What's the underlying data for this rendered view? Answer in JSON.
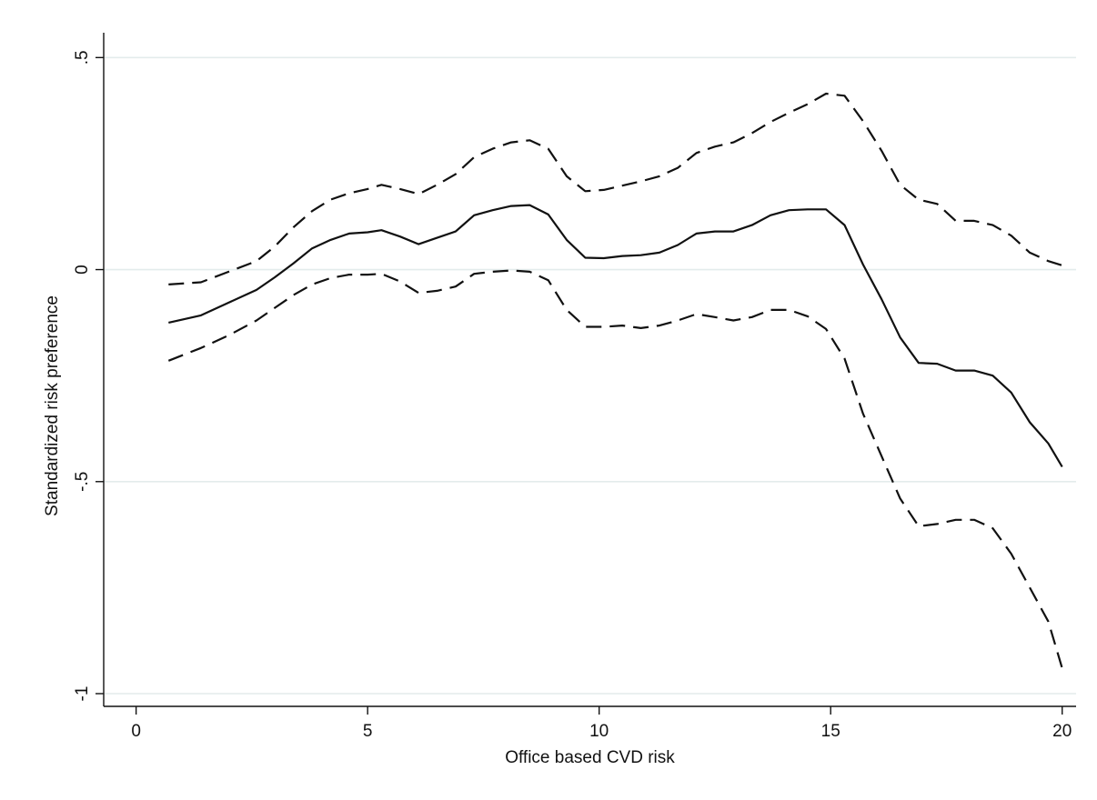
{
  "chart_data": {
    "type": "line",
    "title": "",
    "xlabel": "Office based CVD risk",
    "ylabel": "Standardized risk preference",
    "xlim": [
      -0.7,
      20.3
    ],
    "ylim": [
      -1.03,
      0.55
    ],
    "grid": true,
    "grid_color": "#e3ecec",
    "line_color": "#111111",
    "x_ticks": [
      {
        "value": 0,
        "label": "0"
      },
      {
        "value": 5,
        "label": "5"
      },
      {
        "value": 10,
        "label": "10"
      },
      {
        "value": 15,
        "label": "15"
      },
      {
        "value": 20,
        "label": "20"
      }
    ],
    "y_ticks": [
      {
        "value": 0.5,
        "label": ".5"
      },
      {
        "value": 0,
        "label": "0"
      },
      {
        "value": -0.5,
        "label": "-.5"
      },
      {
        "value": -1,
        "label": "-1"
      }
    ],
    "series": [
      {
        "style": "solid",
        "x": [
          0.7,
          1.4,
          2.0,
          2.6,
          3.0,
          3.4,
          3.8,
          4.2,
          4.6,
          5.0,
          5.3,
          5.7,
          6.1,
          6.5,
          6.9,
          7.3,
          7.7,
          8.1,
          8.5,
          8.9,
          9.3,
          9.7,
          10.1,
          10.5,
          10.9,
          11.3,
          11.7,
          12.1,
          12.5,
          12.9,
          13.3,
          13.7,
          14.1,
          14.5,
          14.9,
          15.3,
          15.7,
          16.1,
          16.5,
          16.9,
          17.3,
          17.7,
          18.1,
          18.5,
          18.9,
          19.3,
          19.7,
          20.0
        ],
        "y": [
          -0.125,
          -0.108,
          -0.078,
          -0.048,
          -0.018,
          0.015,
          0.05,
          0.07,
          0.085,
          0.088,
          0.093,
          0.078,
          0.06,
          0.075,
          0.09,
          0.128,
          0.14,
          0.15,
          0.152,
          0.13,
          0.07,
          0.028,
          0.027,
          0.032,
          0.034,
          0.04,
          0.058,
          0.085,
          0.09,
          0.09,
          0.105,
          0.128,
          0.14,
          0.142,
          0.142,
          0.105,
          0.012,
          -0.07,
          -0.16,
          -0.22,
          -0.222,
          -0.238,
          -0.238,
          -0.25,
          -0.29,
          -0.36,
          -0.41,
          -0.465
        ]
      },
      {
        "style": "dashed",
        "x": [
          0.7,
          1.4,
          2.0,
          2.6,
          3.0,
          3.4,
          3.8,
          4.2,
          4.6,
          5.0,
          5.3,
          5.7,
          6.1,
          6.5,
          6.9,
          7.3,
          7.7,
          8.1,
          8.5,
          8.9,
          9.3,
          9.7,
          10.1,
          10.5,
          10.9,
          11.3,
          11.7,
          12.1,
          12.5,
          12.9,
          13.3,
          13.7,
          14.1,
          14.5,
          14.9,
          15.3,
          15.7,
          16.1,
          16.5,
          16.9,
          17.3,
          17.7,
          18.1,
          18.5,
          18.9,
          19.3,
          19.7,
          20.0
        ],
        "y": [
          -0.035,
          -0.03,
          -0.005,
          0.02,
          0.055,
          0.1,
          0.138,
          0.165,
          0.18,
          0.19,
          0.2,
          0.19,
          0.178,
          0.2,
          0.225,
          0.265,
          0.285,
          0.3,
          0.305,
          0.285,
          0.22,
          0.185,
          0.188,
          0.198,
          0.208,
          0.22,
          0.24,
          0.275,
          0.29,
          0.3,
          0.322,
          0.348,
          0.37,
          0.39,
          0.415,
          0.41,
          0.35,
          0.28,
          0.2,
          0.165,
          0.155,
          0.115,
          0.115,
          0.105,
          0.08,
          0.04,
          0.02,
          0.01
        ]
      },
      {
        "style": "dashed",
        "x": [
          0.7,
          1.4,
          2.0,
          2.6,
          3.0,
          3.4,
          3.8,
          4.2,
          4.6,
          5.0,
          5.3,
          5.7,
          6.1,
          6.5,
          6.9,
          7.3,
          7.7,
          8.1,
          8.5,
          8.9,
          9.3,
          9.7,
          10.1,
          10.5,
          10.9,
          11.3,
          11.7,
          12.1,
          12.5,
          12.9,
          13.3,
          13.7,
          14.1,
          14.5,
          14.9,
          15.3,
          15.7,
          16.1,
          16.5,
          16.9,
          17.3,
          17.7,
          18.1,
          18.5,
          18.9,
          19.3,
          19.7,
          20.0
        ],
        "y": [
          -0.215,
          -0.185,
          -0.155,
          -0.12,
          -0.09,
          -0.06,
          -0.035,
          -0.02,
          -0.012,
          -0.012,
          -0.01,
          -0.028,
          -0.055,
          -0.05,
          -0.04,
          -0.01,
          -0.005,
          -0.002,
          -0.005,
          -0.025,
          -0.095,
          -0.135,
          -0.135,
          -0.132,
          -0.138,
          -0.132,
          -0.12,
          -0.105,
          -0.112,
          -0.12,
          -0.112,
          -0.095,
          -0.095,
          -0.11,
          -0.14,
          -0.21,
          -0.34,
          -0.44,
          -0.54,
          -0.605,
          -0.6,
          -0.59,
          -0.59,
          -0.61,
          -0.67,
          -0.75,
          -0.83,
          -0.94
        ]
      }
    ]
  }
}
